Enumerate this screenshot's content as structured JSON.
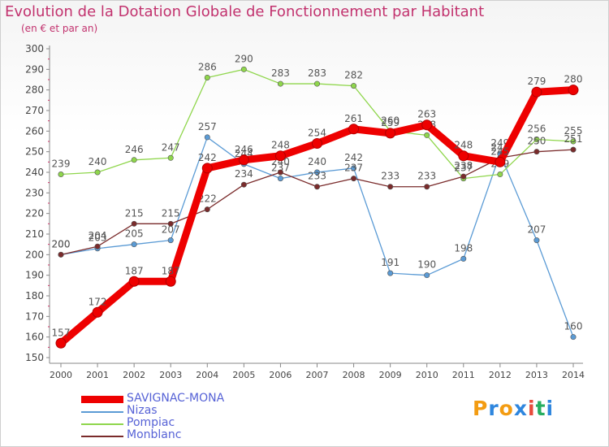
{
  "chart_data": {
    "type": "line",
    "title": "Evolution de la Dotation Globale de Fonctionnement par Habitant",
    "subtitle": "(en € et par an)",
    "xlabel": "",
    "ylabel": "",
    "ylim": [
      150,
      300
    ],
    "y_ticks": [
      150,
      160,
      170,
      180,
      190,
      200,
      210,
      220,
      230,
      240,
      250,
      260,
      270,
      280,
      290,
      300
    ],
    "categories": [
      "2000",
      "2001",
      "2002",
      "2003",
      "2004",
      "2005",
      "2006",
      "2007",
      "2008",
      "2009",
      "2010",
      "2011",
      "2012",
      "2013",
      "2014"
    ],
    "series": [
      {
        "name": "SAVIGNAC-MONA",
        "color": "#ee0000",
        "highlight": true,
        "values": [
          157,
          172,
          187,
          187,
          242,
          246,
          248,
          254,
          261,
          259,
          263,
          248,
          245,
          279,
          280
        ]
      },
      {
        "name": "Nizas",
        "color": "#5b9bd5",
        "highlight": false,
        "values": [
          200,
          203,
          205,
          207,
          257,
          244,
          237,
          240,
          242,
          191,
          190,
          198,
          249,
          207,
          160
        ]
      },
      {
        "name": "Pompiac",
        "color": "#8fd64c",
        "highlight": false,
        "values": [
          239,
          240,
          246,
          247,
          286,
          290,
          283,
          283,
          282,
          260,
          258,
          237,
          239,
          256,
          255
        ]
      },
      {
        "name": "Monblanc",
        "color": "#7a2b2b",
        "highlight": false,
        "values": [
          200,
          204,
          215,
          215,
          222,
          234,
          240,
          233,
          237,
          233,
          233,
          238,
          247,
          250,
          251
        ]
      }
    ],
    "legend_position": "bottom-left",
    "grid": false
  },
  "branding": {
    "letters": [
      "P",
      "r",
      "o",
      "x",
      "i",
      "t",
      "i"
    ],
    "colors": [
      "#f39c12",
      "#2e86de",
      "#f39c12",
      "#2e86de",
      "#e74c3c",
      "#27ae60",
      "#2e86de"
    ]
  },
  "colors": {
    "title": "#c2326e",
    "axis": "#888888",
    "tick_label": "#444444",
    "data_label": "#555555",
    "legend_text": "#5662d6"
  }
}
